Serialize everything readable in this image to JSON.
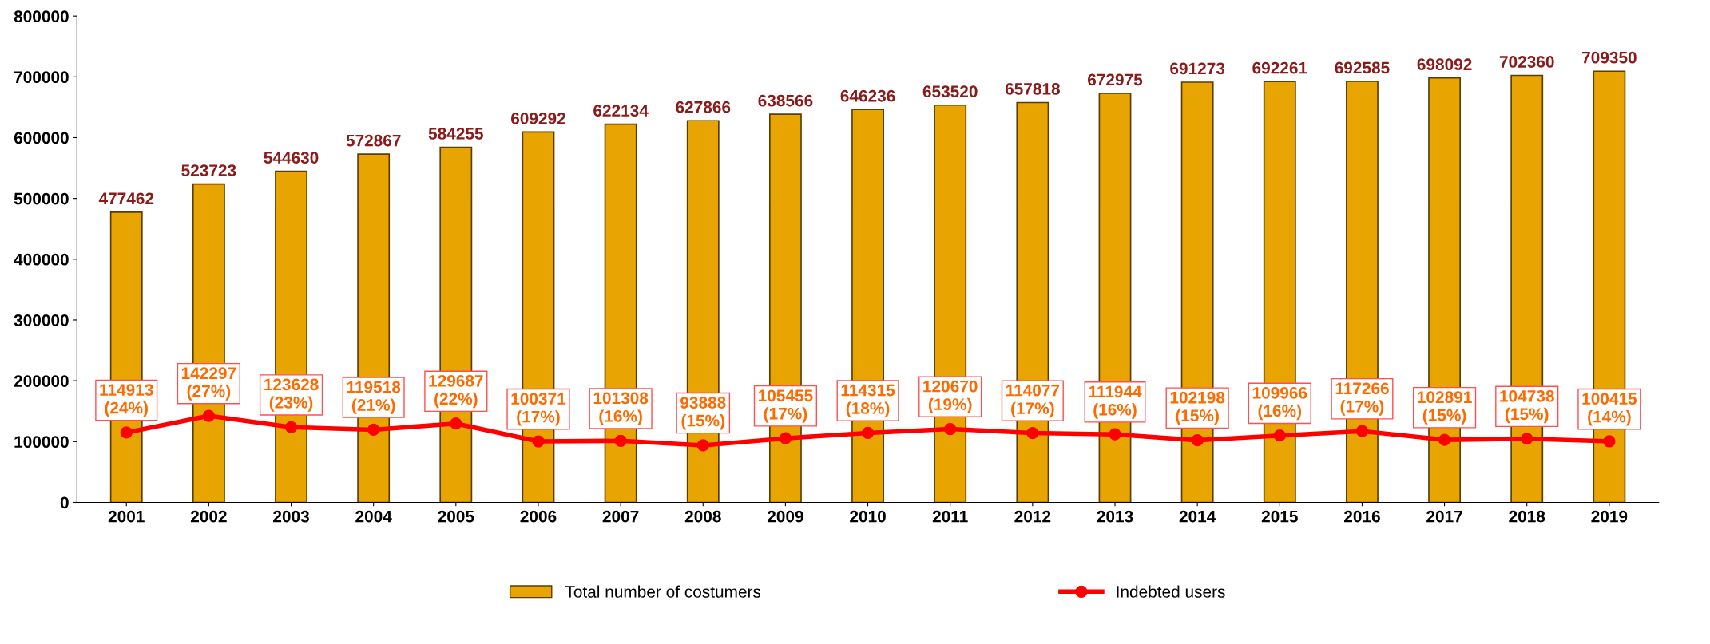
{
  "chart_data": {
    "type": "bar",
    "categories": [
      "2001",
      "2002",
      "2003",
      "2004",
      "2005",
      "2006",
      "2007",
      "2008",
      "2009",
      "2010",
      "2011",
      "2012",
      "2013",
      "2014",
      "2015",
      "2016",
      "2017",
      "2018",
      "2019"
    ],
    "series": [
      {
        "name": "Total number of costumers",
        "color": "#e8a400",
        "values": [
          477462,
          523723,
          544630,
          572867,
          584255,
          609292,
          622134,
          627866,
          638566,
          646236,
          653520,
          657818,
          672975,
          691273,
          692261,
          692585,
          698092,
          702360,
          709350
        ],
        "value_labels": [
          "477462",
          "523723",
          "544630",
          "572867",
          "584255",
          "609292",
          "622134",
          "627866",
          "638566",
          "646236",
          "653520",
          "657818",
          "672975",
          "691273",
          "692261",
          "692585",
          "698092",
          "702360",
          "709350"
        ]
      },
      {
        "name": "Indebted users",
        "type": "line",
        "color": "#ff0000",
        "marker": "circle",
        "values": [
          114913,
          142297,
          123628,
          119518,
          129687,
          100371,
          101308,
          93888,
          105455,
          114315,
          120670,
          114077,
          111944,
          102198,
          109966,
          117266,
          102891,
          104738,
          100415
        ],
        "value_labels": [
          "114913\n(24%)",
          "142297\n(27%)",
          "123628\n(23%)",
          "119518\n(21%)",
          "129687\n(22%)",
          "100371\n(17%)",
          "101308\n(16%)",
          "93888\n(15%)",
          "105455\n(17%)",
          "114315\n(18%)",
          "120670\n(19%)",
          "114077\n(17%)",
          "111944\n(16%)",
          "102198\n(15%)",
          "109966\n(16%)",
          "117266\n(17%)",
          "102891\n(15%)",
          "104738\n(15%)",
          "100415\n(14%)"
        ]
      }
    ],
    "ylim": [
      0,
      800000
    ],
    "yticks": [
      0,
      100000,
      200000,
      300000,
      400000,
      500000,
      600000,
      700000,
      800000
    ],
    "grid": false,
    "legend": "bottom"
  }
}
